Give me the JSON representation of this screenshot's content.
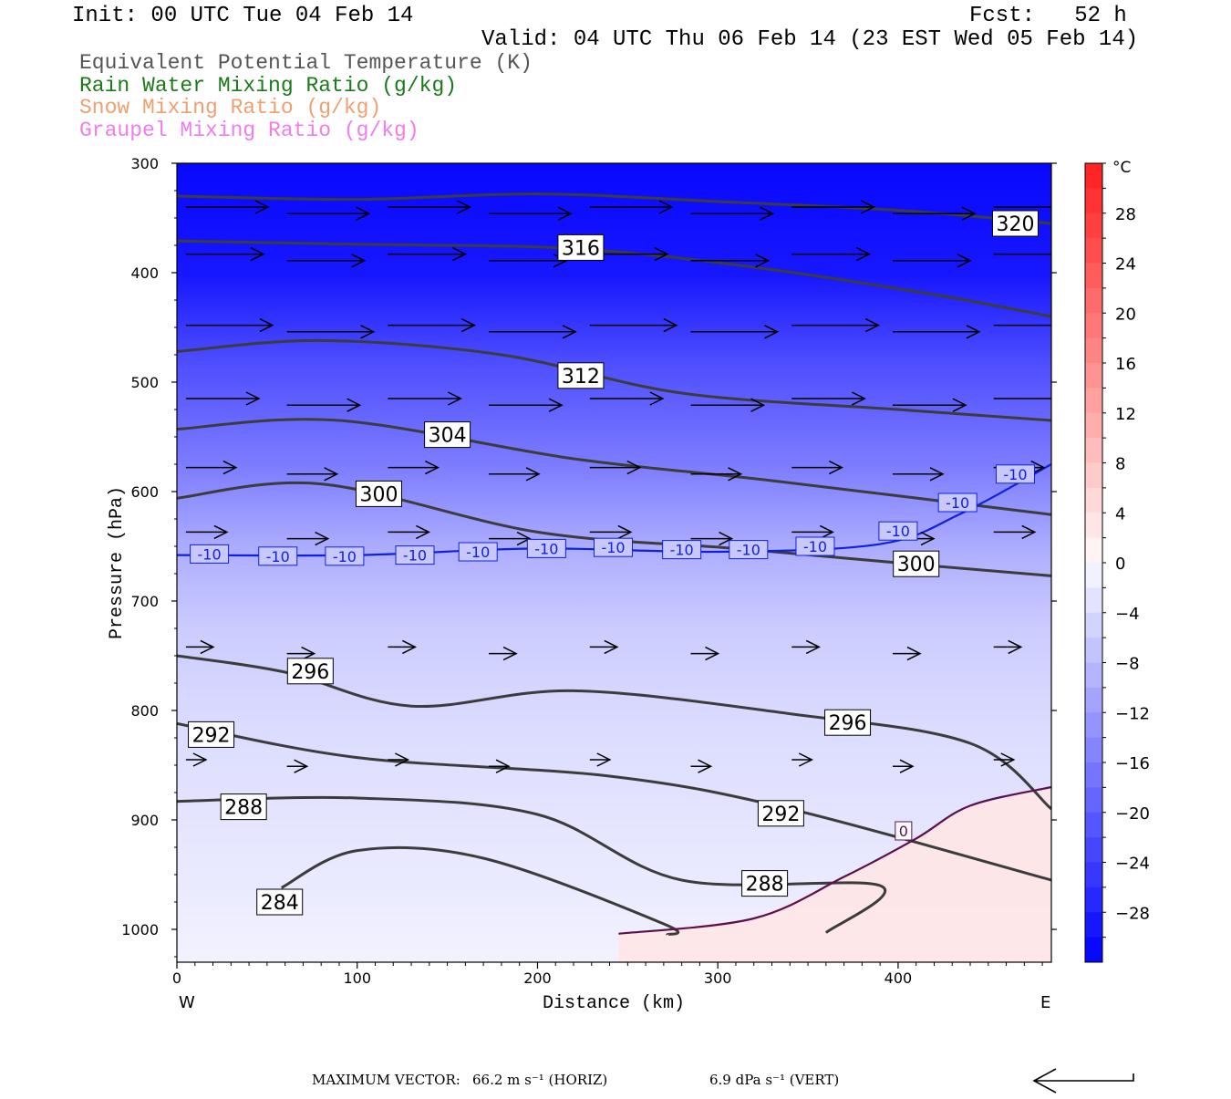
{
  "header": {
    "init": "Init: 00 UTC Tue 04 Feb 14",
    "fcst": "Fcst:   52 h",
    "valid": "Valid: 04 UTC Thu 06 Feb 14 (23 EST Wed 05 Feb 14)"
  },
  "legend": [
    {
      "label": "Equivalent Potential Temperature (K)",
      "color": "#555555"
    },
    {
      "label": "Rain Water Mixing Ratio (g/kg)",
      "color": "#1a7a1a"
    },
    {
      "label": "Snow Mixing Ratio (g/kg)",
      "color": "#f0a070"
    },
    {
      "label": "Graupel Mixing Ratio (g/kg)",
      "color": "#f07cf0"
    }
  ],
  "footer": {
    "max_vector": "MAXIMUM VECTOR:",
    "horiz": "66.2 m s⁻¹ (HORIZ)",
    "vert": "6.9 dPa s⁻¹ (VERT)"
  },
  "chart_data": {
    "type": "heatmap",
    "xlabel": "Distance (km)",
    "ylabel": "Pressure (hPa)",
    "xlim": [
      0,
      485
    ],
    "ylim": [
      1030,
      300
    ],
    "x_ticks": [
      0,
      100,
      200,
      300,
      400
    ],
    "y_ticks": [
      300,
      400,
      500,
      600,
      700,
      800,
      900,
      1000
    ],
    "x_end_labels": {
      "left": "W",
      "right": "E"
    },
    "colorbar": {
      "unit": "°C",
      "ticks": [
        28,
        24,
        20,
        16,
        12,
        8,
        4,
        0,
        -4,
        -8,
        -12,
        -16,
        -20,
        -24,
        -28
      ],
      "range": [
        -32,
        32
      ]
    },
    "theta_e_contours": [
      {
        "value": 320,
        "points": [
          [
            0,
            330
          ],
          [
            100,
            333
          ],
          [
            200,
            328
          ],
          [
            300,
            335
          ],
          [
            400,
            343
          ],
          [
            485,
            355
          ]
        ],
        "labels": [
          [
            465,
            355
          ]
        ]
      },
      {
        "value": 316,
        "points": [
          [
            0,
            371
          ],
          [
            100,
            374
          ],
          [
            220,
            378
          ],
          [
            320,
            395
          ],
          [
            420,
            420
          ],
          [
            485,
            440
          ]
        ],
        "labels": [
          [
            224,
            377
          ]
        ]
      },
      {
        "value": 312,
        "points": [
          [
            0,
            472
          ],
          [
            80,
            462
          ],
          [
            180,
            475
          ],
          [
            280,
            510
          ],
          [
            400,
            525
          ],
          [
            485,
            535
          ]
        ],
        "labels": [
          [
            224,
            494
          ]
        ]
      },
      {
        "value": 304,
        "points": [
          [
            0,
            543
          ],
          [
            90,
            535
          ],
          [
            220,
            570
          ],
          [
            330,
            590
          ],
          [
            485,
            621
          ]
        ],
        "labels": [
          [
            150,
            548
          ]
        ]
      },
      {
        "value": 300,
        "points": [
          [
            0,
            606
          ],
          [
            80,
            593
          ],
          [
            200,
            637
          ],
          [
            310,
            652
          ],
          [
            420,
            668
          ],
          [
            485,
            677
          ]
        ],
        "labels": [
          [
            112,
            602
          ],
          [
            410,
            666
          ]
        ]
      },
      {
        "value": 296,
        "points": [
          [
            0,
            750
          ],
          [
            60,
            765
          ],
          [
            130,
            796
          ],
          [
            220,
            782
          ],
          [
            340,
            803
          ],
          [
            440,
            830
          ],
          [
            485,
            890
          ]
        ],
        "labels": [
          [
            74,
            764
          ],
          [
            372,
            811
          ]
        ]
      },
      {
        "value": 292,
        "points": [
          [
            0,
            812
          ],
          [
            100,
            843
          ],
          [
            240,
            860
          ],
          [
            340,
            890
          ],
          [
            485,
            955
          ]
        ],
        "labels": [
          [
            19,
            822
          ],
          [
            335,
            894
          ]
        ]
      },
      {
        "value": 288,
        "points": [
          [
            0,
            883
          ],
          [
            100,
            880
          ],
          [
            200,
            895
          ],
          [
            280,
            955
          ],
          [
            390,
            960
          ],
          [
            360,
            1003
          ]
        ],
        "labels": [
          [
            37,
            888
          ],
          [
            326,
            958
          ]
        ]
      },
      {
        "value": 284,
        "points": [
          [
            58,
            962
          ],
          [
            100,
            928
          ],
          [
            170,
            935
          ],
          [
            270,
            995
          ],
          [
            272,
            1005
          ]
        ],
        "labels": [
          [
            57,
            975
          ]
        ]
      }
    ],
    "temperature_contours": [
      {
        "value": -10,
        "points": [
          [
            0,
            658
          ],
          [
            100,
            658
          ],
          [
            200,
            652
          ],
          [
            300,
            655
          ],
          [
            390,
            648
          ],
          [
            435,
            620
          ],
          [
            485,
            575
          ]
        ],
        "labels": [
          [
            18,
            657
          ],
          [
            56,
            659
          ],
          [
            93,
            659
          ],
          [
            132,
            658
          ],
          [
            167,
            655
          ],
          [
            205,
            652
          ],
          [
            242,
            651
          ],
          [
            280,
            653
          ],
          [
            317,
            653
          ],
          [
            354,
            650
          ],
          [
            400,
            636
          ],
          [
            433,
            610
          ],
          [
            465,
            584
          ]
        ]
      },
      {
        "value": 0,
        "points": [
          [
            245,
            1004
          ],
          [
            320,
            990
          ],
          [
            370,
            952
          ],
          [
            410,
            917
          ],
          [
            440,
            887
          ],
          [
            485,
            870
          ]
        ],
        "labels": [
          [
            403,
            910
          ]
        ]
      }
    ],
    "wind_rows_hPa": [
      340,
      383,
      448,
      515,
      578,
      637,
      742,
      845
    ]
  }
}
